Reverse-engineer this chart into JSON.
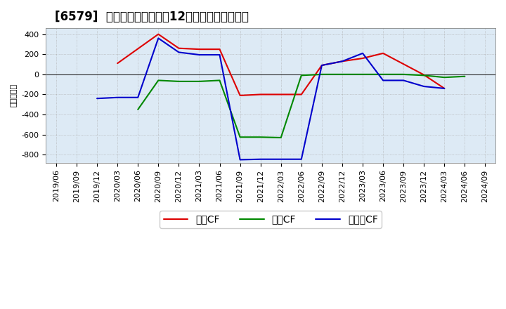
{
  "title": "[6579]  キャッシュフローの12か月移動合計の推移",
  "ylabel": "（百万円）",
  "background_color": "#ffffff",
  "plot_bg_color": "#dde8f0",
  "x_labels": [
    "2019/06",
    "2019/09",
    "2019/12",
    "2020/03",
    "2020/06",
    "2020/09",
    "2020/12",
    "2021/03",
    "2021/06",
    "2021/09",
    "2021/12",
    "2022/03",
    "2022/06",
    "2022/09",
    "2022/12",
    "2023/03",
    "2023/06",
    "2023/09",
    "2023/12",
    "2024/03",
    "2024/06",
    "2024/09"
  ],
  "op_x": [
    3,
    5,
    6,
    7,
    8,
    9,
    10,
    11,
    12,
    13,
    14,
    15,
    16,
    18,
    19
  ],
  "op_y": [
    110,
    400,
    260,
    250,
    250,
    -210,
    -200,
    -200,
    -200,
    90,
    130,
    160,
    210,
    -5,
    -140
  ],
  "inv_x": [
    4,
    5,
    6,
    7,
    8,
    9,
    10,
    11,
    12,
    13,
    14,
    15,
    16,
    17,
    18,
    19,
    20
  ],
  "inv_y": [
    -350,
    -60,
    -70,
    -70,
    -60,
    -625,
    -625,
    -630,
    -10,
    0,
    0,
    0,
    0,
    0,
    -10,
    -30,
    -20
  ],
  "free_x": [
    2,
    3,
    4,
    5,
    6,
    7,
    8,
    9,
    10,
    11,
    12,
    13,
    14,
    15,
    16,
    17,
    18,
    19
  ],
  "free_y": [
    -240,
    -230,
    -230,
    360,
    220,
    195,
    195,
    -850,
    -845,
    -845,
    -845,
    90,
    130,
    210,
    -60,
    -60,
    -120,
    -140
  ],
  "op_color": "#dd0000",
  "inv_color": "#008800",
  "free_color": "#0000cc",
  "op_label": "営業CF",
  "inv_label": "投資CF",
  "free_label": "フリーCF",
  "linewidth": 1.5,
  "ylim": [
    -880,
    460
  ],
  "yticks": [
    -800,
    -600,
    -400,
    -200,
    0,
    200,
    400
  ],
  "title_fontsize": 12,
  "tick_fontsize": 8,
  "ylabel_fontsize": 8,
  "legend_fontsize": 10
}
